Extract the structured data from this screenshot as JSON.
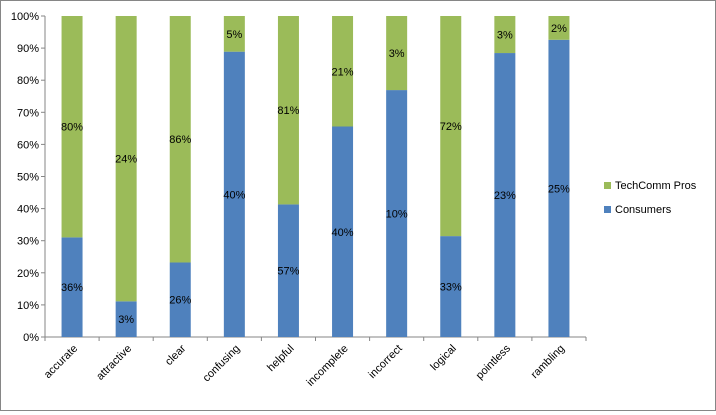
{
  "chart_data": {
    "type": "bar",
    "stacked": "percent",
    "categories": [
      "accurate",
      "attractive",
      "clear",
      "confusing",
      "helpful",
      "incomplete",
      "incorrect",
      "logical",
      "pointless",
      "rambling"
    ],
    "series": [
      {
        "name": "Consumers",
        "color": "#4f81bd",
        "values": [
          36,
          3,
          26,
          40,
          57,
          40,
          10,
          33,
          23,
          25
        ],
        "labels": [
          "36%",
          "3%",
          "26%",
          "40%",
          "57%",
          "40%",
          "10%",
          "33%",
          "23%",
          "25%"
        ]
      },
      {
        "name": "TechComm Pros",
        "color": "#9bbb59",
        "values": [
          80,
          24,
          86,
          5,
          81,
          21,
          3,
          72,
          3,
          2
        ],
        "labels": [
          "80%",
          "24%",
          "86%",
          "5%",
          "81%",
          "21%",
          "3%",
          "72%",
          "3%",
          "2%"
        ]
      }
    ],
    "y_ticks": [
      "0%",
      "10%",
      "20%",
      "30%",
      "40%",
      "50%",
      "60%",
      "70%",
      "80%",
      "90%",
      "100%"
    ],
    "ylim": [
      0,
      100
    ],
    "grid": false,
    "legend_position": "right"
  }
}
